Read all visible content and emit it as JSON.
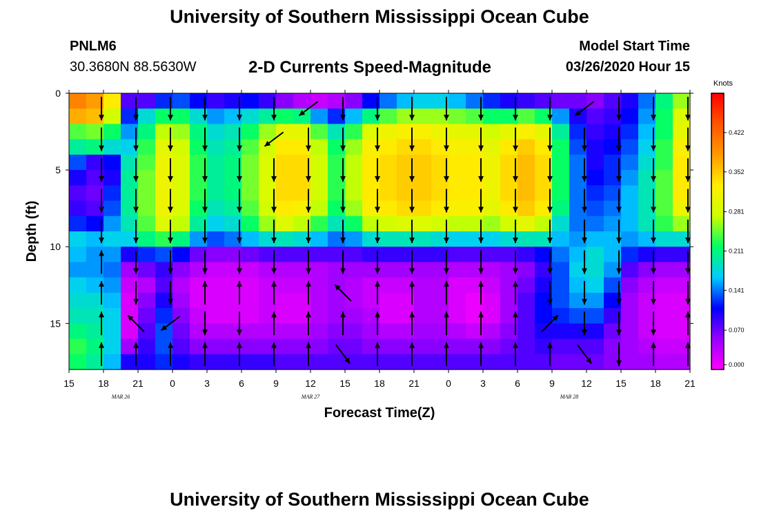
{
  "header": {
    "title": "University of Southern Mississippi Ocean Cube",
    "station_id": "PNLM6",
    "station_coords": "30.3680N 88.5630W",
    "plot_title": "2-D Currents Speed-Magnitude",
    "model_start_label": "Model Start Time",
    "model_start_time": "03/26/2020 Hour 15"
  },
  "footer": {
    "title": "University of Southern Mississippi Ocean Cube"
  },
  "chart_data": {
    "type": "heatmap",
    "title": "2-D Currents Speed-Magnitude",
    "xlabel": "Forecast Time(Z)",
    "ylabel": "Depth (ft)",
    "x_range_hours": [
      0,
      54
    ],
    "x_ticks": [
      {
        "h": 0,
        "label": "15"
      },
      {
        "h": 3,
        "label": "18"
      },
      {
        "h": 6,
        "label": "21"
      },
      {
        "h": 9,
        "label": "0"
      },
      {
        "h": 12,
        "label": "3"
      },
      {
        "h": 15,
        "label": "6"
      },
      {
        "h": 18,
        "label": "9"
      },
      {
        "h": 21,
        "label": "12"
      },
      {
        "h": 24,
        "label": "15"
      },
      {
        "h": 27,
        "label": "18"
      },
      {
        "h": 30,
        "label": "21"
      },
      {
        "h": 33,
        "label": "0"
      },
      {
        "h": 36,
        "label": "3"
      },
      {
        "h": 39,
        "label": "6"
      },
      {
        "h": 42,
        "label": "9"
      },
      {
        "h": 45,
        "label": "12"
      },
      {
        "h": 48,
        "label": "15"
      },
      {
        "h": 51,
        "label": "18"
      },
      {
        "h": 54,
        "label": "21"
      }
    ],
    "date_labels": [
      {
        "h": 4.5,
        "label": "MAR 26"
      },
      {
        "h": 21,
        "label": "MAR 27"
      },
      {
        "h": 43.5,
        "label": "MAR 28"
      }
    ],
    "y_range_ft": [
      0,
      18
    ],
    "y_ticks": [
      0,
      5,
      10,
      15
    ],
    "colorbar": {
      "title": "Knots",
      "range": [
        0,
        0.492
      ],
      "ticks": [
        "0.000",
        "0.070",
        "0.141",
        "0.211",
        "0.281",
        "0.352",
        "0.422"
      ],
      "colors": [
        "#ff00ff",
        "#9900ff",
        "#0000ff",
        "#00ccff",
        "#00ff66",
        "#ccff00",
        "#ffee00",
        "#ff9900",
        "#ff5500",
        "#ff0000"
      ]
    },
    "depth_layers_ft": [
      0.5,
      1.5,
      2.5,
      3.5,
      4.5,
      5.5,
      6.5,
      7.5,
      8.5,
      9.5,
      10.5,
      11.5,
      12.5,
      13.5,
      14.5,
      15.5,
      16.5,
      17.5
    ],
    "vector_times_hours": [
      3,
      6,
      9,
      12,
      15,
      18,
      21,
      24,
      27,
      30,
      33,
      36,
      39,
      42,
      45,
      48,
      51,
      54
    ],
    "vector_depths_ft": [
      1,
      3,
      5,
      7,
      9,
      11,
      13,
      15,
      17
    ],
    "vector_directions": [
      "down",
      "down",
      "down",
      "down",
      "down",
      "down",
      "left-down",
      "down",
      "down",
      "down",
      "down",
      "down",
      "down",
      "down",
      "left-down",
      "down",
      "down",
      "down",
      "down",
      "down",
      "down",
      "down",
      "down",
      "left-down",
      "down",
      "down",
      "down",
      "down",
      "down",
      "down",
      "down",
      "down",
      "down",
      "down",
      "down",
      "down",
      "down",
      "down",
      "down",
      "down",
      "down",
      "down",
      "down",
      "down",
      "down",
      "down",
      "down",
      "down",
      "down",
      "down",
      "down",
      "down",
      "down",
      "down",
      "down",
      "down",
      "down",
      "down",
      "down",
      "down",
      "down",
      "down",
      "down",
      "down",
      "down",
      "down",
      "down",
      "down",
      "down",
      "down",
      "down",
      "down",
      "down",
      "down",
      "down",
      "down",
      "down",
      "down",
      "down",
      "down",
      "down",
      "down",
      "down",
      "down",
      "down",
      "down",
      "down",
      "down",
      "down",
      "down",
      "up",
      "down",
      "down",
      "down",
      "down",
      "down",
      "down",
      "down",
      "down",
      "down",
      "down",
      "down",
      "down",
      "down",
      "down",
      "down",
      "down",
      "down",
      "up",
      "down",
      "down",
      "up",
      "up",
      "up",
      "up",
      "left-up",
      "up",
      "up",
      "up",
      "up",
      "up",
      "down",
      "down",
      "down",
      "down",
      "down",
      "up",
      "left-up",
      "left-down",
      "down",
      "down",
      "up",
      "up",
      "up",
      "up",
      "up",
      "up",
      "up",
      "up",
      "right-up",
      "down",
      "down",
      "down",
      "up",
      "up",
      "up",
      "up",
      "up",
      "up",
      "up",
      "up",
      "right-down",
      "up",
      "up",
      "up",
      "up",
      "up",
      "up",
      "right-down",
      "down",
      "up",
      "up"
    ],
    "speed_columns": [
      {
        "h": 0,
        "speeds": [
          0.4,
          0.37,
          0.24,
          0.2,
          0.13,
          0.1,
          0.08,
          0.09,
          0.12,
          0.17,
          0.16,
          0.15,
          0.17,
          0.18,
          0.19,
          0.21,
          0.23,
          0.22
        ]
      },
      {
        "h": 1.5,
        "speeds": [
          0.38,
          0.36,
          0.25,
          0.21,
          0.09,
          0.08,
          0.07,
          0.08,
          0.11,
          0.16,
          0.15,
          0.15,
          0.16,
          0.18,
          0.19,
          0.2,
          0.21,
          0.2
        ]
      },
      {
        "h": 3,
        "speeds": [
          0.33,
          0.28,
          0.22,
          0.18,
          0.11,
          0.1,
          0.12,
          0.13,
          0.15,
          0.17,
          0.15,
          0.14,
          0.15,
          0.16,
          0.17,
          0.17,
          0.17,
          0.16
        ]
      },
      {
        "h": 4.5,
        "speeds": [
          0.08,
          0.12,
          0.15,
          0.17,
          0.19,
          0.2,
          0.2,
          0.2,
          0.19,
          0.17,
          0.1,
          0.05,
          0.03,
          0.02,
          0.02,
          0.02,
          0.05,
          0.1
        ]
      },
      {
        "h": 6,
        "speeds": [
          0.08,
          0.18,
          0.21,
          0.23,
          0.24,
          0.25,
          0.25,
          0.25,
          0.24,
          0.21,
          0.12,
          0.07,
          0.04,
          0.06,
          0.07,
          0.08,
          0.09,
          0.1
        ]
      },
      {
        "h": 7.5,
        "speeds": [
          0.12,
          0.22,
          0.27,
          0.3,
          0.31,
          0.31,
          0.31,
          0.31,
          0.29,
          0.23,
          0.13,
          0.09,
          0.08,
          0.1,
          0.12,
          0.13,
          0.13,
          0.12
        ]
      },
      {
        "h": 9,
        "speeds": [
          0.13,
          0.22,
          0.26,
          0.28,
          0.29,
          0.29,
          0.29,
          0.29,
          0.27,
          0.21,
          0.11,
          0.06,
          0.04,
          0.05,
          0.06,
          0.07,
          0.08,
          0.1
        ]
      },
      {
        "h": 10.5,
        "speeds": [
          0.11,
          0.18,
          0.21,
          0.22,
          0.23,
          0.23,
          0.23,
          0.22,
          0.2,
          0.15,
          0.07,
          0.04,
          0.02,
          0.02,
          0.03,
          0.04,
          0.06,
          0.09
        ]
      },
      {
        "h": 12,
        "speeds": [
          0.09,
          0.15,
          0.18,
          0.19,
          0.2,
          0.2,
          0.2,
          0.19,
          0.17,
          0.13,
          0.06,
          0.03,
          0.02,
          0.02,
          0.02,
          0.04,
          0.06,
          0.09
        ]
      },
      {
        "h": 13.5,
        "speeds": [
          0.1,
          0.16,
          0.19,
          0.2,
          0.21,
          0.21,
          0.21,
          0.2,
          0.18,
          0.14,
          0.06,
          0.03,
          0.02,
          0.02,
          0.02,
          0.04,
          0.06,
          0.09
        ]
      },
      {
        "h": 15,
        "speeds": [
          0.11,
          0.18,
          0.22,
          0.24,
          0.25,
          0.25,
          0.25,
          0.24,
          0.22,
          0.16,
          0.07,
          0.03,
          0.02,
          0.02,
          0.02,
          0.04,
          0.06,
          0.09
        ]
      },
      {
        "h": 16.5,
        "speeds": [
          0.09,
          0.2,
          0.26,
          0.28,
          0.29,
          0.29,
          0.29,
          0.28,
          0.26,
          0.18,
          0.08,
          0.04,
          0.03,
          0.03,
          0.03,
          0.04,
          0.06,
          0.09
        ]
      },
      {
        "h": 18,
        "speeds": [
          0.06,
          0.22,
          0.3,
          0.33,
          0.34,
          0.34,
          0.34,
          0.33,
          0.29,
          0.19,
          0.08,
          0.04,
          0.03,
          0.02,
          0.02,
          0.04,
          0.06,
          0.08
        ]
      },
      {
        "h": 19.5,
        "speeds": [
          0.04,
          0.21,
          0.3,
          0.33,
          0.34,
          0.34,
          0.34,
          0.32,
          0.27,
          0.18,
          0.08,
          0.04,
          0.03,
          0.02,
          0.02,
          0.04,
          0.06,
          0.08
        ]
      },
      {
        "h": 21,
        "speeds": [
          0.03,
          0.15,
          0.24,
          0.27,
          0.28,
          0.28,
          0.28,
          0.27,
          0.23,
          0.16,
          0.08,
          0.04,
          0.04,
          0.04,
          0.04,
          0.05,
          0.06,
          0.08
        ]
      },
      {
        "h": 22.5,
        "speeds": [
          0.04,
          0.12,
          0.19,
          0.22,
          0.23,
          0.23,
          0.23,
          0.22,
          0.19,
          0.14,
          0.08,
          0.05,
          0.05,
          0.05,
          0.05,
          0.06,
          0.07,
          0.08
        ]
      },
      {
        "h": 24,
        "speeds": [
          0.06,
          0.16,
          0.23,
          0.26,
          0.27,
          0.27,
          0.27,
          0.26,
          0.22,
          0.15,
          0.08,
          0.05,
          0.04,
          0.04,
          0.05,
          0.06,
          0.07,
          0.08
        ]
      },
      {
        "h": 25.5,
        "speeds": [
          0.11,
          0.21,
          0.29,
          0.32,
          0.33,
          0.33,
          0.33,
          0.32,
          0.27,
          0.18,
          0.09,
          0.05,
          0.03,
          0.03,
          0.04,
          0.05,
          0.06,
          0.08
        ]
      },
      {
        "h": 27,
        "speeds": [
          0.14,
          0.24,
          0.31,
          0.33,
          0.34,
          0.34,
          0.34,
          0.33,
          0.28,
          0.19,
          0.09,
          0.05,
          0.03,
          0.02,
          0.02,
          0.04,
          0.06,
          0.08
        ]
      },
      {
        "h": 28.5,
        "speeds": [
          0.16,
          0.26,
          0.32,
          0.34,
          0.35,
          0.35,
          0.35,
          0.34,
          0.29,
          0.19,
          0.09,
          0.05,
          0.03,
          0.02,
          0.02,
          0.04,
          0.06,
          0.08
        ]
      },
      {
        "h": 30,
        "speeds": [
          0.17,
          0.26,
          0.32,
          0.34,
          0.35,
          0.35,
          0.35,
          0.34,
          0.29,
          0.19,
          0.09,
          0.05,
          0.04,
          0.04,
          0.04,
          0.05,
          0.06,
          0.08
        ]
      },
      {
        "h": 31.5,
        "speeds": [
          0.17,
          0.26,
          0.31,
          0.33,
          0.34,
          0.34,
          0.34,
          0.33,
          0.28,
          0.18,
          0.09,
          0.05,
          0.04,
          0.04,
          0.04,
          0.05,
          0.06,
          0.08
        ]
      },
      {
        "h": 33,
        "speeds": [
          0.16,
          0.25,
          0.3,
          0.32,
          0.33,
          0.33,
          0.33,
          0.32,
          0.27,
          0.17,
          0.08,
          0.04,
          0.02,
          0.02,
          0.02,
          0.04,
          0.06,
          0.08
        ]
      },
      {
        "h": 34.5,
        "speeds": [
          0.14,
          0.24,
          0.3,
          0.32,
          0.33,
          0.33,
          0.33,
          0.32,
          0.27,
          0.17,
          0.08,
          0.04,
          0.02,
          0.01,
          0.01,
          0.03,
          0.06,
          0.08
        ]
      },
      {
        "h": 36,
        "speeds": [
          0.12,
          0.22,
          0.28,
          0.3,
          0.31,
          0.31,
          0.31,
          0.3,
          0.26,
          0.17,
          0.08,
          0.04,
          0.03,
          0.02,
          0.02,
          0.04,
          0.06,
          0.08
        ]
      },
      {
        "h": 37.5,
        "speeds": [
          0.1,
          0.22,
          0.3,
          0.33,
          0.34,
          0.34,
          0.34,
          0.33,
          0.28,
          0.18,
          0.08,
          0.05,
          0.05,
          0.05,
          0.05,
          0.06,
          0.07,
          0.08
        ]
      },
      {
        "h": 39,
        "speeds": [
          0.09,
          0.24,
          0.32,
          0.35,
          0.36,
          0.36,
          0.36,
          0.35,
          0.3,
          0.19,
          0.09,
          0.06,
          0.07,
          0.08,
          0.08,
          0.08,
          0.08,
          0.08
        ]
      },
      {
        "h": 40.5,
        "speeds": [
          0.08,
          0.22,
          0.3,
          0.33,
          0.34,
          0.34,
          0.34,
          0.33,
          0.27,
          0.19,
          0.11,
          0.09,
          0.1,
          0.11,
          0.11,
          0.1,
          0.09,
          0.08
        ]
      },
      {
        "h": 42,
        "speeds": [
          0.07,
          0.15,
          0.2,
          0.22,
          0.22,
          0.22,
          0.22,
          0.21,
          0.18,
          0.16,
          0.14,
          0.13,
          0.13,
          0.13,
          0.12,
          0.1,
          0.08,
          0.07
        ]
      },
      {
        "h": 43.5,
        "speeds": [
          0.07,
          0.1,
          0.12,
          0.13,
          0.14,
          0.14,
          0.14,
          0.14,
          0.14,
          0.15,
          0.16,
          0.17,
          0.16,
          0.15,
          0.13,
          0.1,
          0.08,
          0.07
        ]
      },
      {
        "h": 45,
        "speeds": [
          0.06,
          0.08,
          0.09,
          0.1,
          0.1,
          0.11,
          0.12,
          0.13,
          0.14,
          0.16,
          0.18,
          0.18,
          0.17,
          0.15,
          0.13,
          0.1,
          0.08,
          0.07
        ]
      },
      {
        "h": 46.5,
        "speeds": [
          0.08,
          0.09,
          0.1,
          0.11,
          0.12,
          0.12,
          0.13,
          0.14,
          0.15,
          0.16,
          0.16,
          0.15,
          0.13,
          0.11,
          0.09,
          0.07,
          0.06,
          0.06
        ]
      },
      {
        "h": 48,
        "speeds": [
          0.1,
          0.11,
          0.12,
          0.13,
          0.14,
          0.15,
          0.16,
          0.16,
          0.16,
          0.15,
          0.12,
          0.08,
          0.06,
          0.05,
          0.05,
          0.05,
          0.05,
          0.05
        ]
      },
      {
        "h": 49.5,
        "speeds": [
          0.14,
          0.15,
          0.16,
          0.17,
          0.18,
          0.19,
          0.19,
          0.19,
          0.19,
          0.16,
          0.1,
          0.06,
          0.04,
          0.03,
          0.03,
          0.03,
          0.04,
          0.05
        ]
      },
      {
        "h": 51,
        "speeds": [
          0.21,
          0.22,
          0.22,
          0.23,
          0.23,
          0.24,
          0.24,
          0.24,
          0.23,
          0.18,
          0.09,
          0.05,
          0.03,
          0.02,
          0.02,
          0.02,
          0.03,
          0.04
        ]
      },
      {
        "h": 52.5,
        "speeds": [
          0.26,
          0.29,
          0.3,
          0.32,
          0.33,
          0.33,
          0.33,
          0.31,
          0.26,
          0.18,
          0.09,
          0.05,
          0.03,
          0.02,
          0.02,
          0.02,
          0.03,
          0.04
        ]
      }
    ]
  }
}
